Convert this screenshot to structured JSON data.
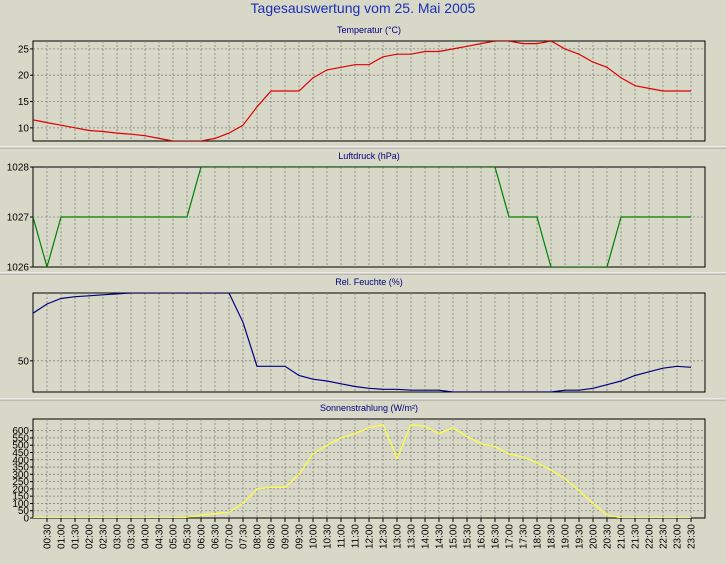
{
  "title": "Tagesauswertung vom 25. Mai 2005",
  "chart_data": [
    {
      "type": "line",
      "title": "Temperatur (°C)",
      "color": "#e00000",
      "ylim": [
        7.5,
        26.5
      ],
      "yticks": [
        10,
        15,
        20,
        25
      ],
      "x": [
        "00:00",
        "00:30",
        "01:00",
        "01:30",
        "02:00",
        "02:30",
        "03:00",
        "03:30",
        "04:00",
        "04:30",
        "05:00",
        "05:30",
        "06:00",
        "06:30",
        "07:00",
        "07:30",
        "08:00",
        "08:30",
        "09:00",
        "09:30",
        "10:00",
        "10:30",
        "11:00",
        "11:30",
        "12:00",
        "12:30",
        "13:00",
        "13:30",
        "14:00",
        "14:30",
        "15:00",
        "15:30",
        "16:00",
        "16:30",
        "17:00",
        "17:30",
        "18:00",
        "18:30",
        "19:00",
        "19:30",
        "20:00",
        "20:30",
        "21:00",
        "21:30",
        "22:00",
        "22:30",
        "23:00",
        "23:30"
      ],
      "values": [
        11.5,
        11.0,
        10.5,
        10.0,
        9.5,
        9.3,
        9.0,
        8.8,
        8.5,
        8.0,
        7.5,
        7.5,
        7.5,
        8.0,
        9.0,
        10.5,
        14.0,
        17.0,
        17.0,
        17.0,
        19.5,
        21.0,
        21.5,
        22.0,
        22.0,
        23.5,
        24.0,
        24.0,
        24.5,
        24.5,
        25.0,
        25.5,
        26.0,
        26.5,
        26.5,
        26.0,
        26.0,
        26.5,
        25.0,
        24.0,
        22.5,
        21.5,
        19.5,
        18.0,
        17.5,
        17.0,
        17.0,
        17.0
      ]
    },
    {
      "type": "line",
      "title": "Luftdruck (hPa)",
      "color": "#008000",
      "ylim": [
        1026,
        1028
      ],
      "yticks": [
        1026,
        1027,
        1028
      ],
      "x": [
        "00:00",
        "00:30",
        "01:00",
        "01:30",
        "02:00",
        "02:30",
        "03:00",
        "03:30",
        "04:00",
        "04:30",
        "05:00",
        "05:30",
        "06:00",
        "06:30",
        "07:00",
        "07:30",
        "08:00",
        "08:30",
        "09:00",
        "09:30",
        "10:00",
        "10:30",
        "11:00",
        "11:30",
        "12:00",
        "12:30",
        "13:00",
        "13:30",
        "14:00",
        "14:30",
        "15:00",
        "15:30",
        "16:00",
        "16:30",
        "17:00",
        "17:30",
        "18:00",
        "18:30",
        "19:00",
        "19:30",
        "20:00",
        "20:30",
        "21:00",
        "21:30",
        "22:00",
        "22:30",
        "23:00",
        "23:30"
      ],
      "values": [
        1027,
        1026,
        1027,
        1027,
        1027,
        1027,
        1027,
        1027,
        1027,
        1027,
        1027,
        1027,
        1028,
        1028,
        1028,
        1028,
        1028,
        1028,
        1028,
        1028,
        1028,
        1028,
        1028,
        1028,
        1028,
        1028,
        1028,
        1028,
        1028,
        1028,
        1028,
        1028,
        1028,
        1028,
        1027,
        1027,
        1027,
        1026,
        1026,
        1026,
        1026,
        1026,
        1027,
        1027,
        1027,
        1027,
        1027,
        1027
      ]
    },
    {
      "type": "line",
      "title": "Rel. Feuchte (%)",
      "color": "#000080",
      "ylim": [
        33,
        87
      ],
      "yticks": [
        50
      ],
      "x": [
        "00:00",
        "00:30",
        "01:00",
        "01:30",
        "02:00",
        "02:30",
        "03:00",
        "03:30",
        "04:00",
        "04:30",
        "05:00",
        "05:30",
        "06:00",
        "06:30",
        "07:00",
        "07:30",
        "08:00",
        "08:30",
        "09:00",
        "09:30",
        "10:00",
        "10:30",
        "11:00",
        "11:30",
        "12:00",
        "12:30",
        "13:00",
        "13:30",
        "14:00",
        "14:30",
        "15:00",
        "15:30",
        "16:00",
        "16:30",
        "17:00",
        "17:30",
        "18:00",
        "18:30",
        "19:00",
        "19:30",
        "20:00",
        "20:30",
        "21:00",
        "21:30",
        "22:00",
        "22:30",
        "23:00",
        "23:30"
      ],
      "values": [
        76,
        81,
        84,
        85,
        85.5,
        86,
        86.5,
        87,
        87,
        87,
        87,
        87,
        87,
        87,
        87,
        71,
        47,
        47,
        47,
        42,
        40,
        39,
        37.5,
        36,
        35,
        34.5,
        34.5,
        34,
        34,
        34,
        33,
        33,
        33,
        33,
        33,
        33,
        33,
        33,
        34,
        34,
        35,
        37,
        39,
        42,
        44,
        46,
        47,
        46.5
      ]
    },
    {
      "type": "line",
      "title": "Sonnenstrahlung (W/m²)",
      "color": "#ffff40",
      "ylim": [
        0,
        680
      ],
      "yticks": [
        0,
        50,
        100,
        150,
        200,
        250,
        300,
        350,
        400,
        450,
        500,
        550,
        600
      ],
      "x": [
        "00:00",
        "00:30",
        "01:00",
        "01:30",
        "02:00",
        "02:30",
        "03:00",
        "03:30",
        "04:00",
        "04:30",
        "05:00",
        "05:30",
        "06:00",
        "06:30",
        "07:00",
        "07:30",
        "08:00",
        "08:30",
        "09:00",
        "09:30",
        "10:00",
        "10:30",
        "11:00",
        "11:30",
        "12:00",
        "12:30",
        "13:00",
        "13:30",
        "14:00",
        "14:30",
        "15:00",
        "15:30",
        "16:00",
        "16:30",
        "17:00",
        "17:30",
        "18:00",
        "18:30",
        "19:00",
        "19:30",
        "20:00",
        "20:30",
        "21:00",
        "21:30",
        "22:00",
        "22:30",
        "23:00",
        "23:30"
      ],
      "values": [
        0,
        0,
        0,
        0,
        0,
        0,
        0,
        0,
        0,
        0,
        0,
        5,
        20,
        30,
        40,
        100,
        200,
        210,
        210,
        300,
        440,
        500,
        550,
        580,
        620,
        640,
        410,
        640,
        630,
        580,
        620,
        560,
        510,
        490,
        440,
        420,
        380,
        330,
        270,
        190,
        100,
        20,
        0,
        0,
        0,
        0,
        0,
        0
      ]
    }
  ],
  "xticks": [
    "00:30",
    "01:00",
    "01:30",
    "02:00",
    "02:30",
    "03:00",
    "03:30",
    "04:00",
    "04:30",
    "05:00",
    "05:30",
    "06:00",
    "06:30",
    "07:00",
    "07:30",
    "08:00",
    "08:30",
    "09:00",
    "09:30",
    "10:00",
    "10:30",
    "11:00",
    "11:30",
    "12:00",
    "12:30",
    "13:00",
    "13:30",
    "14:00",
    "14:30",
    "15:00",
    "15:30",
    "16:00",
    "16:30",
    "17:00",
    "17:30",
    "18:00",
    "18:30",
    "19:00",
    "19:30",
    "20:00",
    "20:30",
    "21:00",
    "21:30",
    "22:00",
    "22:30",
    "23:00",
    "23:30"
  ]
}
